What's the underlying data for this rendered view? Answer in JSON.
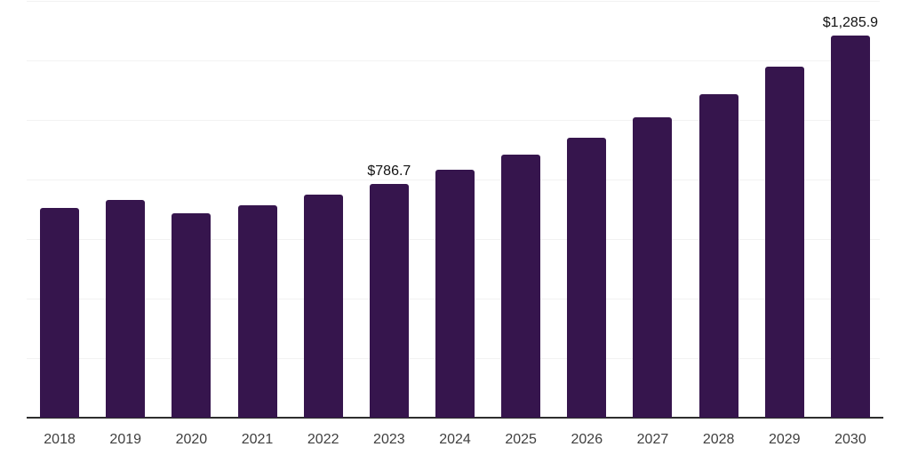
{
  "chart_data": {
    "type": "bar",
    "title": "",
    "xlabel": "",
    "ylabel": "",
    "categories": [
      "2018",
      "2019",
      "2020",
      "2021",
      "2022",
      "2023",
      "2024",
      "2025",
      "2026",
      "2027",
      "2028",
      "2029",
      "2030"
    ],
    "values": [
      706,
      733,
      688,
      715,
      751,
      786.7,
      832,
      885,
      942,
      1011,
      1086,
      1181,
      1285.9
    ],
    "value_labels": [
      "",
      "",
      "",
      "",
      "",
      "$786.7",
      "",
      "",
      "",
      "",
      "",
      "",
      "$1,285.9"
    ],
    "ylim": [
      0,
      1404
    ],
    "gridline_values": [
      200,
      400,
      600,
      800,
      1000,
      1200,
      1400
    ],
    "grid": "horizontal",
    "legend_position": "none",
    "colors": {
      "bar": "#36154d",
      "gridline": "#f2f2f2",
      "axis_line": "#2e2e2e",
      "tick_label": "#3f3f3f",
      "value_label": "#121212",
      "background": "#ffffff"
    }
  }
}
